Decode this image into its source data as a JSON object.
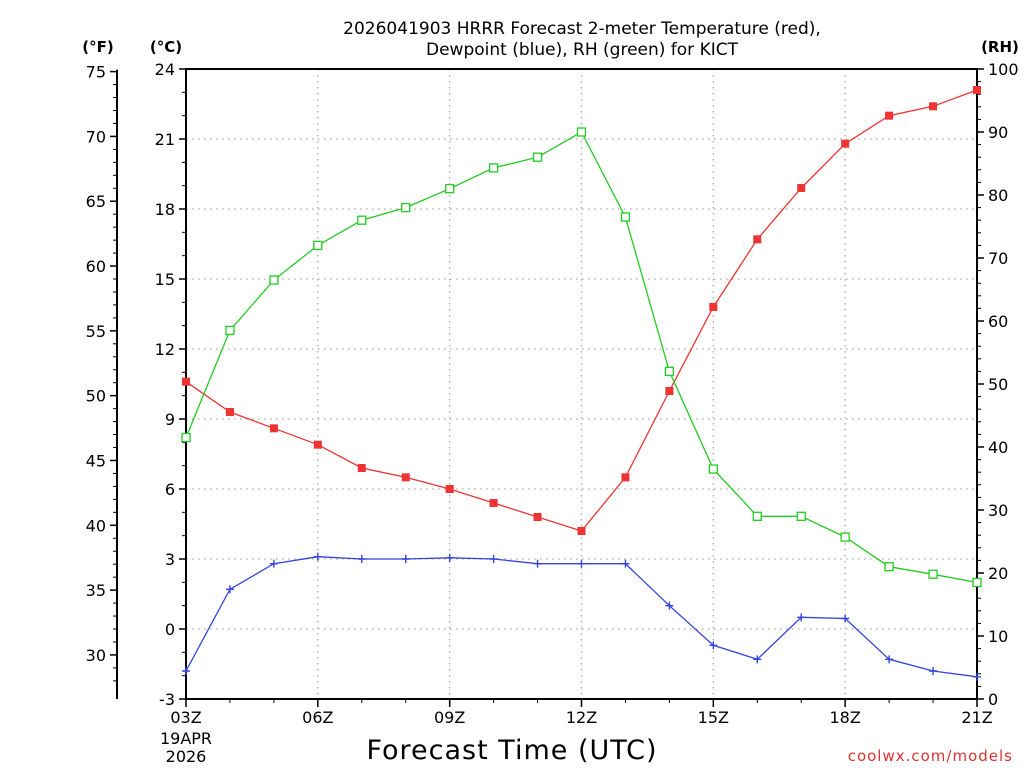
{
  "chart_data": {
    "type": "line",
    "title_line1": "2026041903 HRRR Forecast 2-meter Temperature (red),",
    "title_line2": "Dewpoint (blue), RH (green) for KICT",
    "xlabel": "Forecast Time (UTC)",
    "date_label_1": "19APR",
    "date_label_2": "2026",
    "watermark": "coolwx.com/models",
    "axis_units": {
      "fahrenheit": "(°F)",
      "celsius": "(°C)",
      "rh": "(RH)"
    },
    "x_ticks": [
      "03Z",
      "06Z",
      "09Z",
      "12Z",
      "15Z",
      "18Z",
      "21Z"
    ],
    "x_hours": [
      3,
      4,
      5,
      6,
      7,
      8,
      9,
      10,
      11,
      12,
      13,
      14,
      15,
      16,
      17,
      18,
      19,
      20,
      21
    ],
    "xlim": [
      3,
      21
    ],
    "celsius_ticks": [
      -3,
      0,
      3,
      6,
      9,
      12,
      15,
      18,
      21,
      24
    ],
    "celsius_ylim": [
      -3,
      24
    ],
    "fahrenheit_ticks": [
      30,
      35,
      40,
      45,
      50,
      55,
      60,
      65,
      70,
      75
    ],
    "rh_ticks": [
      0,
      10,
      20,
      30,
      40,
      50,
      60,
      70,
      80,
      90,
      100
    ],
    "rh_ylim": [
      0,
      100
    ],
    "series": [
      {
        "name": "2-meter Temperature",
        "color": "#ee3333",
        "marker": "filled-square",
        "axis": "celsius",
        "values": [
          10.6,
          9.3,
          8.6,
          7.9,
          6.9,
          6.5,
          6.0,
          5.4,
          4.8,
          4.2,
          6.5,
          10.2,
          13.8,
          16.7,
          18.9,
          20.8,
          22.0,
          22.4,
          23.1
        ]
      },
      {
        "name": "Dewpoint",
        "color": "#3344dd",
        "marker": "plus",
        "axis": "celsius",
        "values": [
          -1.8,
          1.7,
          2.8,
          3.1,
          3.0,
          3.0,
          3.05,
          3.0,
          2.8,
          2.8,
          2.8,
          1.0,
          -0.7,
          -1.3,
          0.5,
          0.45,
          -1.3,
          -1.8,
          -2.05
        ]
      },
      {
        "name": "RH",
        "color": "#22cc22",
        "marker": "open-square",
        "axis": "rh",
        "values": [
          41.5,
          58.5,
          66.5,
          72.0,
          76.0,
          78.0,
          81.0,
          84.3,
          86.0,
          90.0,
          76.5,
          52.0,
          36.5,
          29.0,
          29.0,
          25.7,
          21.0,
          19.8,
          18.5
        ]
      }
    ]
  }
}
